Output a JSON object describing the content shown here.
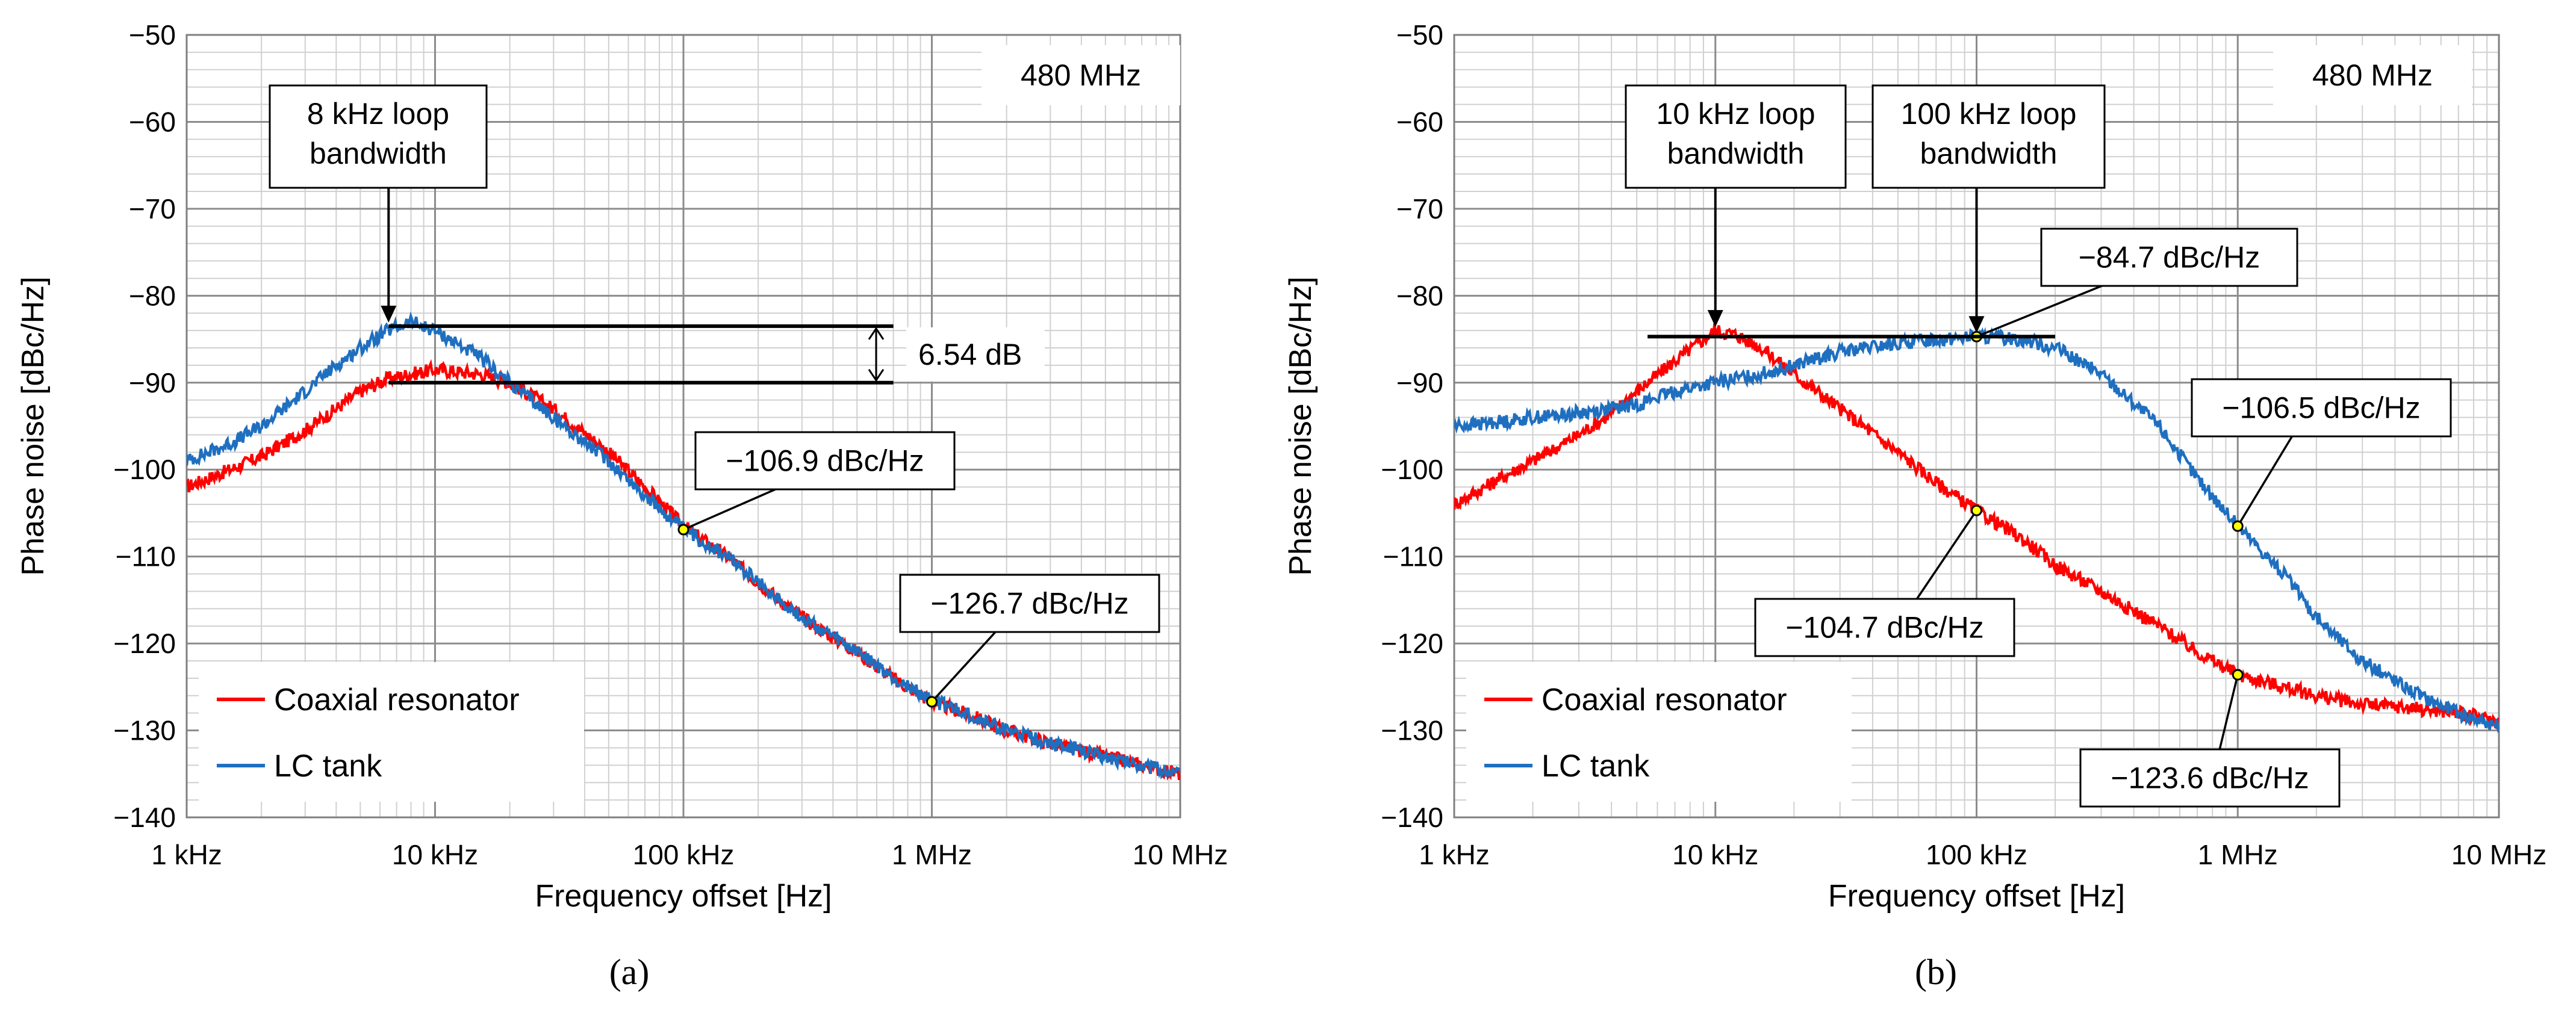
{
  "chart_data": [
    {
      "panel": "(a)",
      "type": "line",
      "xlabel": "Frequency offset [Hz]",
      "ylabel": "Phase noise [dBc/Hz]",
      "xscale": "log",
      "xlim": [
        1000,
        10000000
      ],
      "ylim": [
        -140,
        -50
      ],
      "xticks": [
        1000,
        10000,
        100000,
        1000000,
        10000000
      ],
      "xtick_labels": [
        "1 kHz",
        "10 kHz",
        "100 kHz",
        "1 MHz",
        "10 MHz"
      ],
      "yticks": [
        -140,
        -130,
        -120,
        -110,
        -100,
        -90,
        -80,
        -70,
        -60,
        -50
      ],
      "ytick_labels": [
        "−140",
        "−130",
        "−120",
        "−110",
        "−100",
        "−90",
        "−80",
        "−70",
        "−60",
        "−50"
      ],
      "grid": true,
      "legend_position": "bottom-left",
      "series": [
        {
          "name": "Coaxial resonator",
          "color": "#ff0000",
          "x": [
            1000,
            1500,
            2000,
            3000,
            4000,
            5000,
            6500,
            8000,
            10000,
            15000,
            20000,
            30000,
            50000,
            70000,
            100000,
            150000,
            200000,
            300000,
            500000,
            700000,
            1000000,
            1500000,
            2000000,
            3000000,
            5000000,
            7000000,
            10000000
          ],
          "y": [
            -102,
            -100,
            -98.5,
            -95.5,
            -93,
            -91,
            -89.5,
            -89,
            -88.5,
            -89,
            -90,
            -93,
            -98,
            -102,
            -106.5,
            -110,
            -113,
            -117,
            -121,
            -124,
            -126.7,
            -128.5,
            -130,
            -131.5,
            -133,
            -134,
            -135
          ]
        },
        {
          "name": "LC tank",
          "color": "#1f6fc0",
          "x": [
            1000,
            1500,
            2000,
            3000,
            4000,
            5000,
            6500,
            8000,
            10000,
            15000,
            20000,
            30000,
            50000,
            70000,
            100000,
            150000,
            200000,
            300000,
            500000,
            700000,
            1000000,
            1500000,
            2000000,
            3000000,
            5000000,
            7000000,
            10000000
          ],
          "y": [
            -99,
            -97,
            -95,
            -91,
            -88,
            -86,
            -84,
            -83,
            -84,
            -87,
            -90,
            -94,
            -99,
            -103,
            -106.9,
            -110,
            -113,
            -117,
            -121,
            -124,
            -126.5,
            -128.5,
            -130,
            -131.5,
            -133,
            -134,
            -135
          ]
        }
      ],
      "annotations": [
        {
          "text": [
            "480 MHz"
          ],
          "kind": "label"
        },
        {
          "text": [
            "8 kHz loop",
            "bandwidth"
          ],
          "kind": "arrow",
          "x": 6500,
          "y": -83.5
        },
        {
          "text": [
            "6.54 dB"
          ],
          "kind": "dimension",
          "y1": -83.5,
          "y2": -90
        },
        {
          "text": [
            "−106.9 dBc/Hz"
          ],
          "kind": "callout",
          "x": 100000,
          "y": -106.9
        },
        {
          "text": [
            "−126.7 dBc/Hz"
          ],
          "kind": "callout",
          "x": 1000000,
          "y": -126.7
        }
      ]
    },
    {
      "panel": "(b)",
      "type": "line",
      "xlabel": "Frequency offset [Hz]",
      "ylabel": "Phase noise [dBc/Hz]",
      "xscale": "log",
      "xlim": [
        1000,
        10000000
      ],
      "ylim": [
        -140,
        -50
      ],
      "xticks": [
        1000,
        10000,
        100000,
        1000000,
        10000000
      ],
      "xtick_labels": [
        "1 kHz",
        "10 kHz",
        "100 kHz",
        "1 MHz",
        "10 MHz"
      ],
      "yticks": [
        -140,
        -130,
        -120,
        -110,
        -100,
        -90,
        -80,
        -70,
        -60,
        -50
      ],
      "ytick_labels": [
        "−140",
        "−130",
        "−120",
        "−110",
        "−100",
        "−90",
        "−80",
        "−70",
        "−60",
        "−50"
      ],
      "grid": true,
      "legend_position": "bottom-left",
      "series": [
        {
          "name": "Coaxial resonator",
          "color": "#ff0000",
          "x": [
            1000,
            1500,
            2000,
            3000,
            4000,
            5000,
            7000,
            10000,
            12000,
            15000,
            20000,
            30000,
            50000,
            70000,
            100000,
            150000,
            200000,
            300000,
            500000,
            700000,
            1000000,
            1500000,
            2000000,
            3000000,
            5000000,
            7000000,
            10000000
          ],
          "y": [
            -104,
            -101,
            -99,
            -96,
            -93.5,
            -91,
            -87.5,
            -84,
            -84.5,
            -86,
            -89,
            -93,
            -98,
            -101.5,
            -104.7,
            -108,
            -111,
            -114,
            -118,
            -121,
            -123.6,
            -125,
            -126,
            -127,
            -127.5,
            -128,
            -129
          ]
        },
        {
          "name": "LC tank",
          "color": "#1f6fc0",
          "x": [
            1000,
            1500,
            2000,
            3000,
            4000,
            5000,
            7000,
            10000,
            15000,
            20000,
            30000,
            50000,
            70000,
            100000,
            150000,
            200000,
            300000,
            500000,
            700000,
            1000000,
            1500000,
            2000000,
            3000000,
            5000000,
            7000000,
            10000000
          ],
          "y": [
            -95,
            -94.5,
            -94,
            -93.5,
            -93,
            -92.5,
            -91,
            -90,
            -89,
            -88,
            -86.5,
            -85.5,
            -85,
            -84.7,
            -85,
            -86,
            -89,
            -95,
            -101,
            -106.5,
            -112,
            -117,
            -122,
            -126,
            -128,
            -129.5
          ]
        }
      ],
      "annotations": [
        {
          "text": [
            "480 MHz"
          ],
          "kind": "label"
        },
        {
          "text": [
            "10 kHz loop",
            "bandwidth"
          ],
          "kind": "arrow",
          "x": 10000,
          "y": -84
        },
        {
          "text": [
            "100 kHz loop",
            "bandwidth"
          ],
          "kind": "arrow",
          "x": 100000,
          "y": -84.7
        },
        {
          "text": [
            "−84.7 dBc/Hz"
          ],
          "kind": "callout",
          "x": 100000,
          "y": -84.7
        },
        {
          "text": [
            "−106.5 dBc/Hz"
          ],
          "kind": "callout",
          "x": 1000000,
          "y": -106.5
        },
        {
          "text": [
            "−104.7 dBc/Hz"
          ],
          "kind": "callout",
          "x": 100000,
          "y": -104.7
        },
        {
          "text": [
            "−123.6 dBc/Hz"
          ],
          "kind": "callout",
          "x": 1000000,
          "y": -123.6
        }
      ]
    }
  ]
}
